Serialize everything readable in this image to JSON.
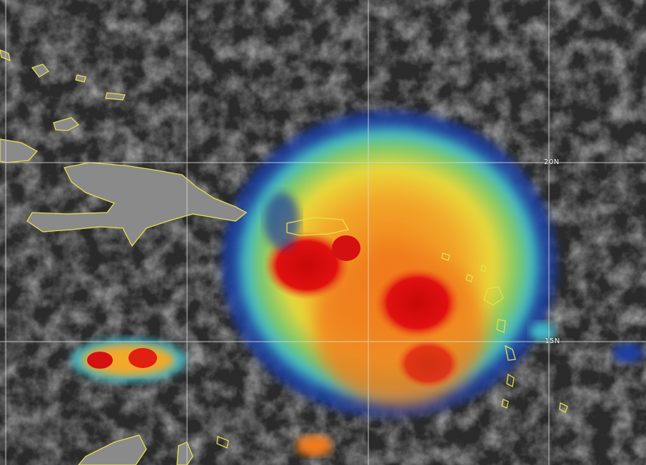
{
  "map": {
    "latitude_labels": [
      "20N",
      "15N"
    ],
    "colors": {
      "background": "#2a2a2a",
      "coastline": "#e8e04a",
      "gridline": "#d8d8d8",
      "cold_top_red": "#d40c0c",
      "orange": "#f07a1a",
      "yellow": "#f2d22a",
      "green": "#7cc86a",
      "cyan": "#3fb8c8",
      "blue": "#1e3ca0"
    }
  }
}
